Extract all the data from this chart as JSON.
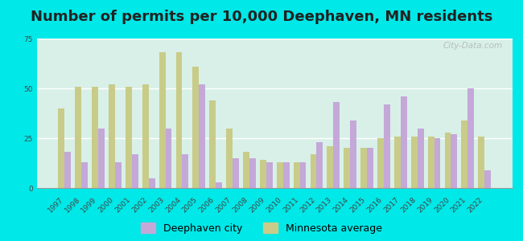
{
  "years": [
    "1997",
    "1998",
    "1999",
    "2000",
    "2001",
    "2002",
    "2003",
    "2004",
    "2005",
    "2006",
    "2007",
    "2008",
    "2009",
    "2010",
    "2011",
    "2012",
    "2013",
    "2014",
    "2015",
    "2016",
    "2017",
    "2018",
    "2019",
    "2020",
    "2021",
    "2022"
  ],
  "deephaven": [
    18,
    13,
    30,
    13,
    17,
    5,
    30,
    17,
    52,
    3,
    15,
    15,
    13,
    13,
    13,
    23,
    43,
    34,
    20,
    42,
    46,
    30,
    25,
    27,
    50,
    9
  ],
  "mn_average": [
    40,
    51,
    51,
    52,
    51,
    52,
    68,
    68,
    61,
    44,
    30,
    18,
    14,
    13,
    13,
    17,
    21,
    20,
    20,
    25,
    26,
    26,
    26,
    28,
    34,
    26
  ],
  "title": "Number of permits per 10,000 Deephaven, MN residents",
  "deephaven_color": "#c4a8d8",
  "mn_color": "#c8cc88",
  "background_plot_top": "#f0f8f0",
  "background_plot_bottom": "#d8f0e8",
  "background_outer": "#00e8e8",
  "ylim": [
    0,
    75
  ],
  "yticks": [
    0,
    25,
    50,
    75
  ],
  "legend_deephaven": "Deephaven city",
  "legend_mn": "Minnesota average",
  "watermark": "City-Data.com",
  "title_fontsize": 13,
  "tick_fontsize": 6.5,
  "legend_fontsize": 9
}
